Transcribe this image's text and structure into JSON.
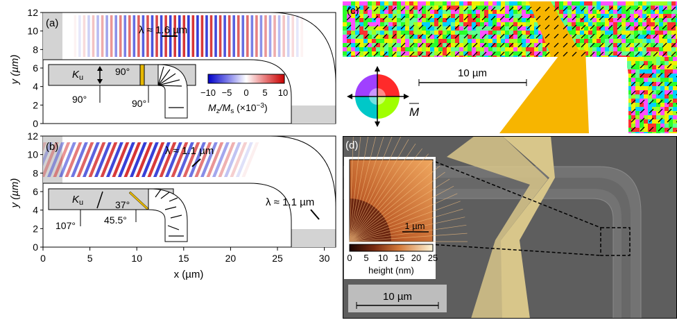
{
  "panels": {
    "a": {
      "label": "(a)",
      "wavelength": "λ ≈ 1.6 µm",
      "angles": [
        "90°",
        "90°",
        "90°"
      ],
      "ku": "K",
      "ku_sub": "u"
    },
    "b": {
      "label": "(b)",
      "wavelength_top": "λ ≈ 1.1 µm",
      "wavelength_right": "λ ≈ 1.1 µm",
      "angles": [
        "37°",
        "107°",
        "45.5°"
      ],
      "ku": "K",
      "ku_sub": "u"
    },
    "c": {
      "label": "(c)",
      "scalebar": "10 µm",
      "m_label": "M"
    },
    "d": {
      "label": "(d)",
      "scalebar": "10 µm",
      "inset_scalebar": "1 µm",
      "inset_axis_label": "height (nm)",
      "inset_ticks": [
        "0",
        "5",
        "10",
        "15",
        "20",
        "25"
      ]
    }
  },
  "colorbar": {
    "ticks": [
      "−10",
      "−5",
      "0",
      "5",
      "10"
    ],
    "label_main": "M",
    "label_sub1": "z",
    "label_mid": "/M",
    "label_sub2": "s",
    "label_tail": " (×10",
    "label_exp": "−3",
    "label_close": ")"
  },
  "axes": {
    "y_label": "y (µm)",
    "x_label": "x (µm)",
    "y_ticks": [
      "0",
      "2",
      "4",
      "6",
      "8",
      "10",
      "12"
    ],
    "x_ticks": [
      "0",
      "5",
      "10",
      "15",
      "20",
      "25",
      "30"
    ]
  },
  "colors": {
    "gold": "#f5b800",
    "sem_bg": "#5e5e5e",
    "sem_gold": "#d8c68a",
    "red": "#d21a1a",
    "blue": "#1a2ad2"
  }
}
